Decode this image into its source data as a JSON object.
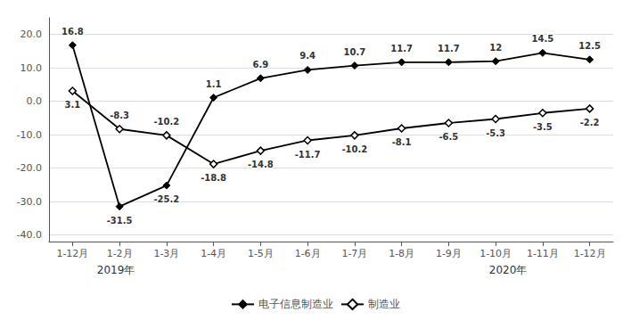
{
  "chart_data": {
    "type": "line",
    "categories": [
      "1-12月",
      "1-2月",
      "1-3月",
      "1-4月",
      "1-5月",
      "1-6月",
      "1-7月",
      "1-8月",
      "1-9月",
      "1-10月",
      "1-11月",
      "1-12月"
    ],
    "series": [
      {
        "name": "电子信息制造业",
        "color": "#000000",
        "marker": "diamond",
        "values": [
          16.8,
          -31.5,
          -25.2,
          1.1,
          6.9,
          9.4,
          10.7,
          11.7,
          11.7,
          12.0,
          14.5,
          12.5
        ]
      },
      {
        "name": "制造业",
        "color": "#000000",
        "marker": "diamond-open",
        "values": [
          3.1,
          -8.3,
          -10.2,
          -18.8,
          -14.8,
          -11.7,
          -10.2,
          -8.1,
          -6.5,
          -5.3,
          -3.5,
          -2.2
        ]
      }
    ],
    "ylim": [
      -42.0,
      25.0
    ],
    "yticks": [
      {
        "value": -40,
        "label": "-40.0"
      },
      {
        "value": -30,
        "label": "-30.0"
      },
      {
        "value": -20,
        "label": "-20.0"
      },
      {
        "value": -10,
        "label": "-10.0"
      },
      {
        "value": 0,
        "label": "0.0"
      },
      {
        "value": 10,
        "label": "10.0"
      },
      {
        "value": 20,
        "label": "20.0"
      }
    ],
    "grid": true,
    "legend": "bottom",
    "data_labels": true,
    "annotations": [
      "2019年",
      "2020年"
    ]
  }
}
